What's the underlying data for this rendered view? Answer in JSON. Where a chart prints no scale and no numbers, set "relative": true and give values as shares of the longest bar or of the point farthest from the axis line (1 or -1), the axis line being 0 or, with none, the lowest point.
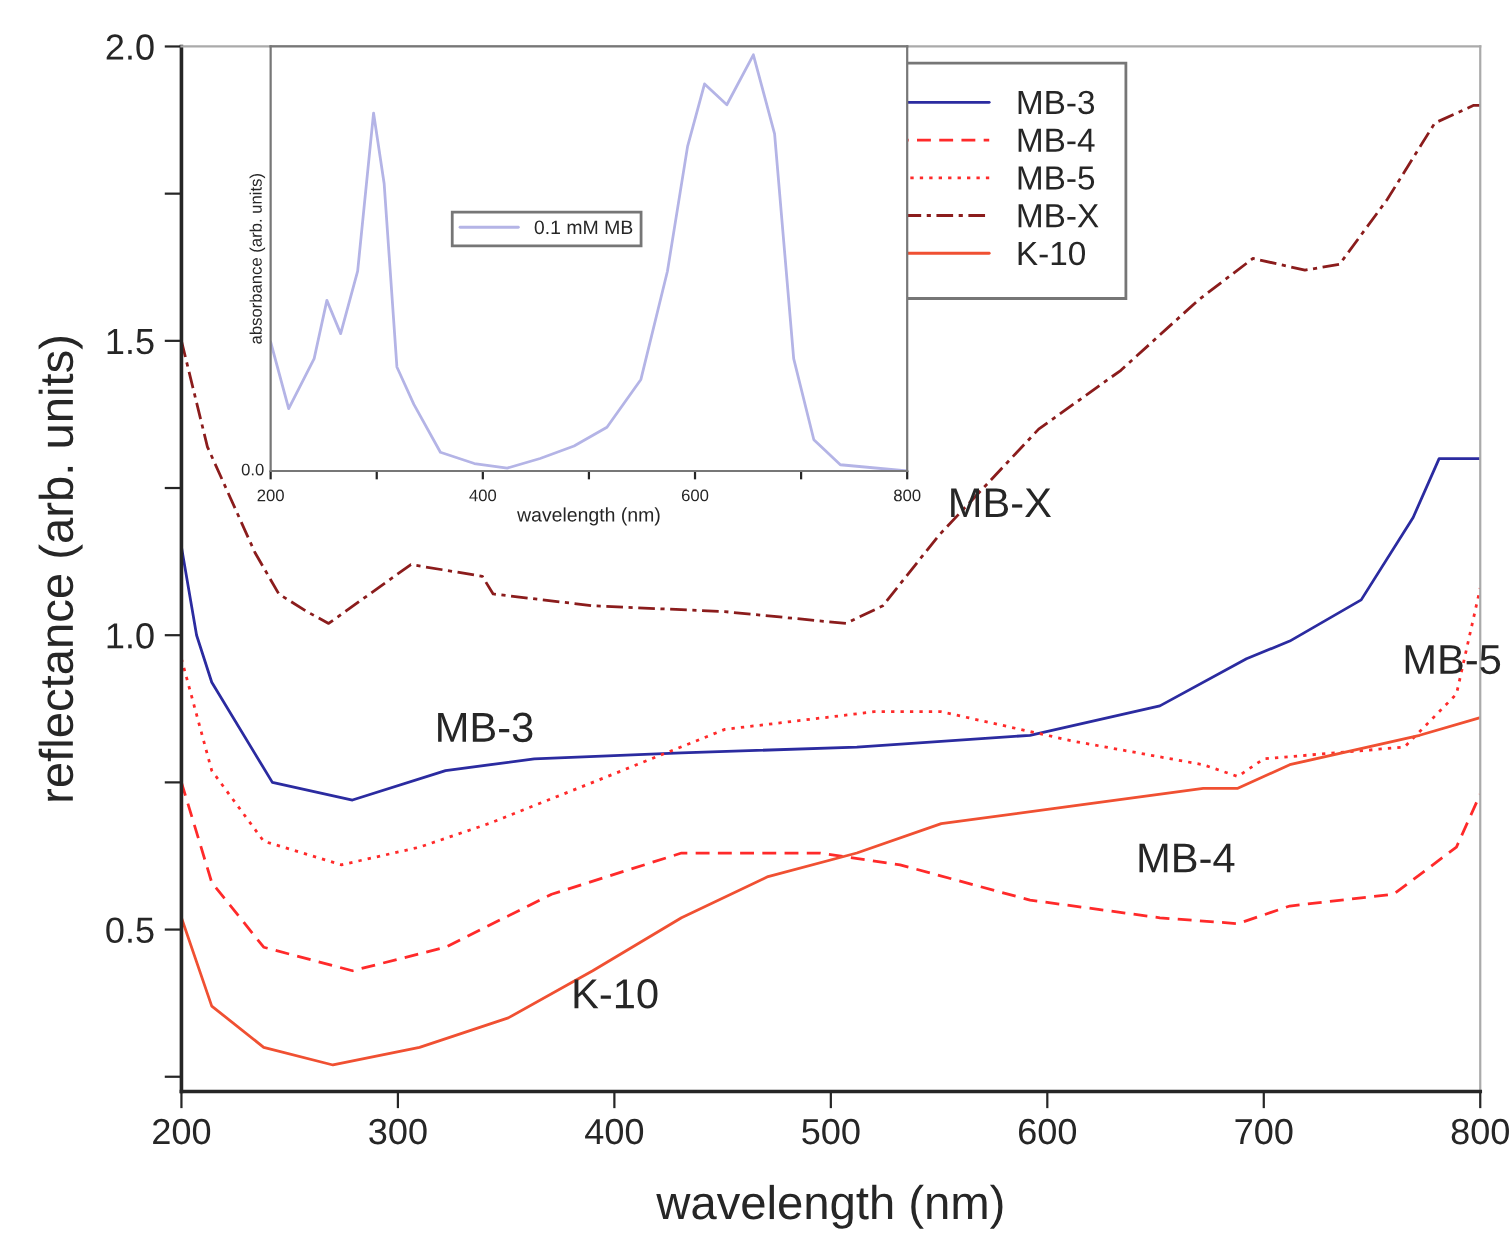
{
  "chart_data": [
    {
      "type": "line",
      "xlabel": "wavelength (nm)",
      "ylabel": "reflectance (arb. units)",
      "xlim": [
        200,
        800
      ],
      "ylim": [
        0.225,
        2.0
      ],
      "xticks": [
        200,
        300,
        400,
        500,
        600,
        700,
        800
      ],
      "yticks": [
        {
          "value": 0.25,
          "label": null
        },
        {
          "value": 0.5,
          "label": "0.5"
        },
        {
          "value": 0.75,
          "label": null
        },
        {
          "value": 1.0,
          "label": "1.0"
        },
        {
          "value": 1.25,
          "label": null
        },
        {
          "value": 1.5,
          "label": "1.5"
        },
        {
          "value": 1.75,
          "label": null
        },
        {
          "value": 2.0,
          "label": "2.0"
        }
      ],
      "legend": "top right",
      "grid": false,
      "marker": "none",
      "series": [
        {
          "name": "MB-3",
          "color": "#2b2ba0",
          "line_style": "solid",
          "x": [
            200,
            207,
            214,
            242,
            279,
            322,
            363,
            431,
            512,
            592,
            652,
            692,
            712,
            745,
            769,
            781,
            800
          ],
          "values": [
            1.15,
            1.0,
            0.92,
            0.75,
            0.72,
            0.77,
            0.79,
            0.8,
            0.81,
            0.83,
            0.88,
            0.96,
            0.99,
            1.06,
            1.2,
            1.3,
            1.3
          ]
        },
        {
          "name": "MB-4",
          "color": "#ff2a2a",
          "line_style": "dashed",
          "x": [
            200,
            214,
            238,
            279,
            322,
            371,
            431,
            495,
            532,
            592,
            652,
            688,
            712,
            760,
            789,
            800
          ],
          "values": [
            0.75,
            0.58,
            0.47,
            0.43,
            0.47,
            0.56,
            0.63,
            0.63,
            0.61,
            0.55,
            0.52,
            0.51,
            0.54,
            0.56,
            0.64,
            0.73
          ]
        },
        {
          "name": "MB-5",
          "color": "#ff2a2a",
          "line_style": "dotted",
          "x": [
            200,
            214,
            238,
            274,
            310,
            342,
            390,
            451,
            520,
            551,
            612,
            672,
            688,
            700,
            765,
            789,
            800
          ],
          "values": [
            0.96,
            0.77,
            0.65,
            0.61,
            0.64,
            0.68,
            0.75,
            0.84,
            0.87,
            0.87,
            0.82,
            0.78,
            0.76,
            0.79,
            0.81,
            0.9,
            1.08
          ]
        },
        {
          "name": "MB-X",
          "color": "#8b1c1c",
          "line_style": "dashdot",
          "x": [
            200,
            212,
            234,
            245,
            258,
            268,
            306,
            339,
            344,
            390,
            451,
            507,
            524,
            550,
            596,
            634,
            670,
            695,
            719,
            735,
            757,
            779,
            797,
            800
          ],
          "values": [
            1.5,
            1.32,
            1.14,
            1.07,
            1.04,
            1.02,
            1.12,
            1.1,
            1.07,
            1.05,
            1.04,
            1.02,
            1.05,
            1.17,
            1.35,
            1.45,
            1.57,
            1.64,
            1.62,
            1.63,
            1.74,
            1.87,
            1.9,
            1.9
          ]
        },
        {
          "name": "K-10",
          "color": "#f05032",
          "line_style": "solid",
          "x": [
            200,
            214,
            238,
            270,
            310,
            351,
            390,
            431,
            471,
            512,
            551,
            612,
            672,
            688,
            712,
            772,
            800
          ],
          "values": [
            0.52,
            0.37,
            0.3,
            0.27,
            0.3,
            0.35,
            0.43,
            0.52,
            0.59,
            0.63,
            0.68,
            0.71,
            0.74,
            0.74,
            0.78,
            0.83,
            0.86
          ]
        }
      ],
      "annotations": [
        "MB-X",
        "MB-3",
        "MB-5",
        "MB-4",
        "K-10"
      ]
    },
    {
      "type": "line",
      "relative": true,
      "xlabel": "wavelength (nm)",
      "ylabel": "absorbance (arb. units)",
      "xlim": [
        200,
        800
      ],
      "xticks": [
        200,
        {
          "value": 300,
          "label": null
        },
        400,
        {
          "value": 500,
          "label": null
        },
        600,
        {
          "value": 700,
          "label": null
        },
        800
      ],
      "legend": "left",
      "grid": false,
      "marker": "none",
      "annotations": [
        "0.0"
      ],
      "series": [
        {
          "name": "0.1 mM MB",
          "color": "#b4b4e6",
          "line_style": "solid",
          "x": [
            200,
            217,
            241,
            253,
            266,
            282,
            297,
            307,
            319,
            335,
            360,
            392,
            423,
            454,
            486,
            517,
            549,
            574,
            593,
            609,
            630,
            655,
            675,
            693,
            712,
            737,
            800
          ],
          "values": [
            0.31,
            0.15,
            0.27,
            0.41,
            0.33,
            0.48,
            0.86,
            0.69,
            0.25,
            0.16,
            0.045,
            0.018,
            0.007,
            0.03,
            0.06,
            0.105,
            0.22,
            0.48,
            0.78,
            0.93,
            0.88,
            1.0,
            0.81,
            0.27,
            0.075,
            0.015,
            0.0
          ]
        }
      ]
    }
  ]
}
